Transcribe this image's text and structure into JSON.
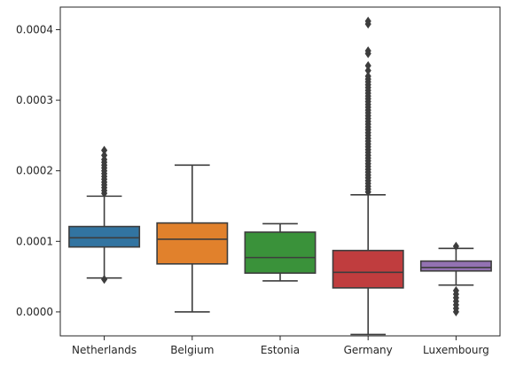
{
  "chart_data": {
    "type": "boxplot",
    "title": "",
    "xlabel": "",
    "ylabel": "",
    "categories": [
      "Netherlands",
      "Belgium",
      "Estonia",
      "Germany",
      "Luxembourg"
    ],
    "y_ticks": [
      0,
      0.0001,
      0.0002,
      0.0003,
      0.0004
    ],
    "y_tick_labels": [
      "0.0000",
      "0.0001",
      "0.0002",
      "0.0003",
      "0.0004"
    ],
    "ylim": [
      -3.4e-05,
      0.000432
    ],
    "grid": false,
    "legend": "none",
    "series": [
      {
        "category": "Netherlands",
        "color": "#3274a1",
        "whisker_low": 4.8e-05,
        "q1": 9.2e-05,
        "median": 0.000105,
        "q3": 0.000121,
        "whisker_high": 0.000164,
        "outliers": [
          4.6e-05,
          0.000168,
          0.000172,
          0.000176,
          0.00018,
          0.000184,
          0.000188,
          0.000192,
          0.000196,
          0.0002,
          0.000204,
          0.000208,
          0.000212,
          0.000216,
          0.000222,
          0.000229
        ]
      },
      {
        "category": "Belgium",
        "color": "#e1812c",
        "whisker_low": 0.0,
        "q1": 6.8e-05,
        "median": 0.000103,
        "q3": 0.000126,
        "whisker_high": 0.000208,
        "outliers": []
      },
      {
        "category": "Estonia",
        "color": "#3a923a",
        "whisker_low": 4.4e-05,
        "q1": 5.5e-05,
        "median": 7.7e-05,
        "q3": 0.000113,
        "whisker_high": 0.000125,
        "outliers": []
      },
      {
        "category": "Germany",
        "color": "#c03d3e",
        "whisker_low": -3.2e-05,
        "q1": 3.4e-05,
        "median": 5.6e-05,
        "q3": 8.7e-05,
        "whisker_high": 0.000166,
        "outliers": [
          0.00017,
          0.000174,
          0.000178,
          0.000182,
          0.000186,
          0.00019,
          0.000194,
          0.000198,
          0.000202,
          0.000206,
          0.00021,
          0.000214,
          0.000218,
          0.000222,
          0.000226,
          0.00023,
          0.000234,
          0.000238,
          0.000242,
          0.000246,
          0.00025,
          0.000254,
          0.000258,
          0.000262,
          0.000266,
          0.00027,
          0.000274,
          0.000278,
          0.000282,
          0.000286,
          0.00029,
          0.000294,
          0.000298,
          0.000302,
          0.000306,
          0.00031,
          0.000314,
          0.000318,
          0.000322,
          0.000326,
          0.00033,
          0.000334,
          0.000342,
          0.000349,
          0.000366,
          0.00037,
          0.000408,
          0.000412
        ]
      },
      {
        "category": "Luxembourg",
        "color": "#9372b2",
        "whisker_low": 3.8e-05,
        "q1": 5.8e-05,
        "median": 6.3e-05,
        "q3": 7.2e-05,
        "whisker_high": 9e-05,
        "outliers": [
          0.0,
          5e-06,
          1e-05,
          1.5e-05,
          2e-05,
          2.5e-05,
          3e-05,
          9.3e-05
        ]
      }
    ]
  }
}
